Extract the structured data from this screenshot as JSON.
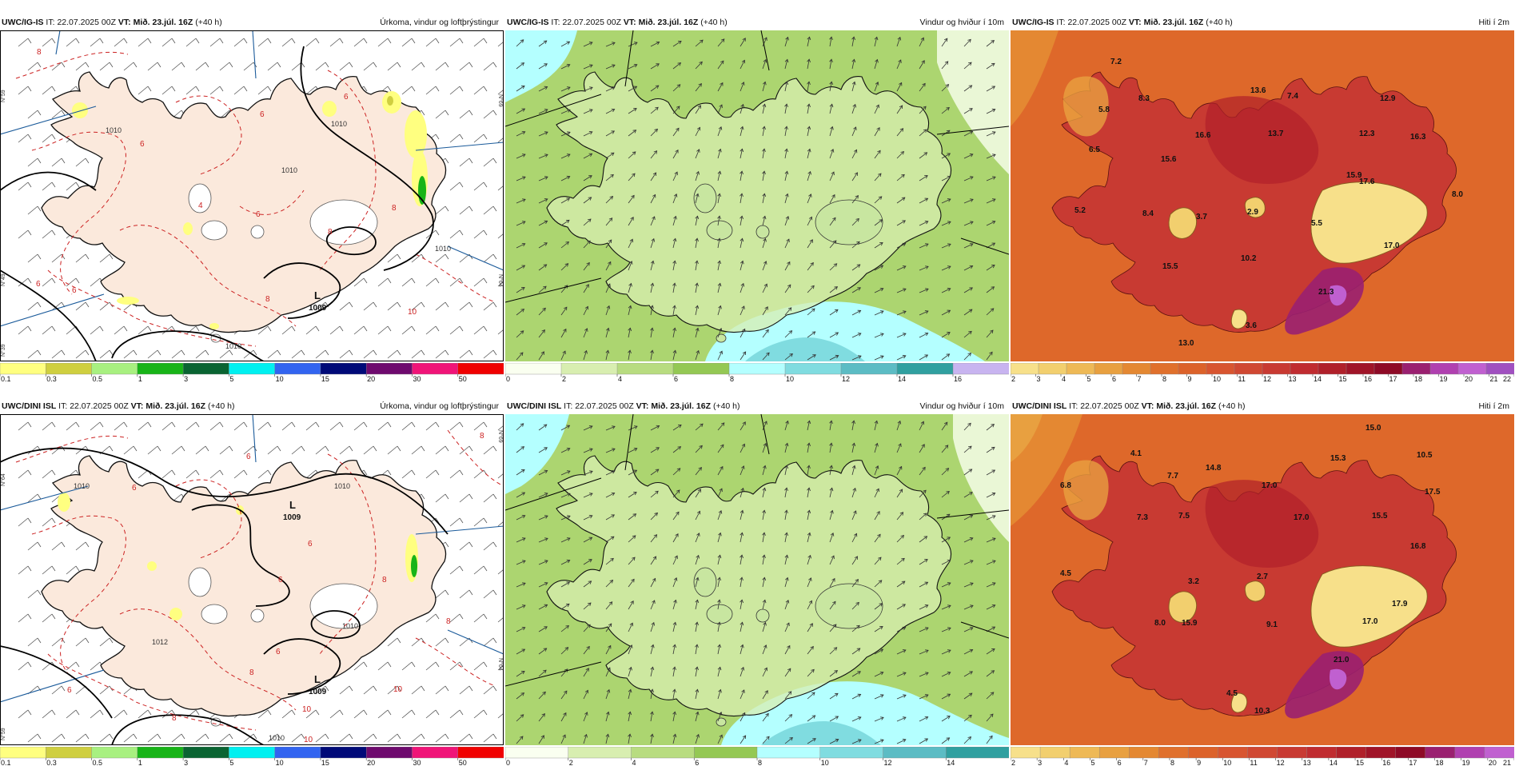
{
  "rows": [
    {
      "panels": [
        {
          "type": "precip",
          "model": "UWC/IG-IS",
          "it_label": "IT:",
          "it": "22.07.2025 00Z",
          "vt_label": "VT:",
          "vt": "Mið. 23.júl. 16Z",
          "lead": "(+40 h)",
          "title": "Úrkoma, vindur og loftþrýstingur",
          "pressure_labels": [
            {
              "text": "1010"
            },
            {
              "text": "1010"
            },
            {
              "text": "1010"
            },
            {
              "text": "1010"
            },
            {
              "text": "1010"
            }
          ],
          "low": {
            "letter": "L",
            "value": "1009"
          },
          "temp_labels": [
            "8",
            "6",
            "6",
            "4",
            "6",
            "6",
            "8",
            "8",
            "6",
            "8",
            "10",
            "6"
          ],
          "grid_labels": [
            "N°59",
            "N°49",
            "N°39",
            "N°69",
            "N°64"
          ]
        },
        {
          "type": "wind",
          "model": "UWC/IG-IS",
          "it_label": "IT:",
          "it": "22.07.2025 00Z",
          "vt_label": "VT:",
          "vt": "Mið. 23.júl. 16Z",
          "lead": "(+40 h)",
          "title": "Vindur og hviður í 10m"
        },
        {
          "type": "temp",
          "model": "UWC/IG-IS",
          "it_label": "IT:",
          "it": "22.07.2025 00Z",
          "vt_label": "VT:",
          "vt": "Mið. 23.júl. 16Z",
          "lead": "(+40 h)",
          "title": "Hiti í 2m",
          "values": [
            "7.2",
            "5.8",
            "8.3",
            "13.6",
            "7.4",
            "12.9",
            "6.5",
            "16.6",
            "13.7",
            "12.3",
            "16.3",
            "15.6",
            "15.9",
            "17.6",
            "8.0",
            "5.2",
            "8.4",
            "3.7",
            "2.9",
            "5.5",
            "17.0",
            "10.2",
            "15.5",
            "21.3",
            "3.6",
            "13.0"
          ]
        }
      ]
    },
    {
      "panels": [
        {
          "type": "precip",
          "model": "UWC/DINI ISL",
          "it_label": "IT:",
          "it": "22.07.2025 00Z",
          "vt_label": "VT:",
          "vt": "Mið. 23.júl. 16Z",
          "lead": "(+40 h)",
          "title": "Úrkoma, vindur og loftþrýstingur",
          "pressure_labels": [
            {
              "text": "1010"
            },
            {
              "text": "1010"
            },
            {
              "text": "1012"
            },
            {
              "text": "1010"
            },
            {
              "text": "1010"
            }
          ],
          "low": {
            "letter": "L",
            "value": "1009"
          },
          "low2": {
            "letter": "L",
            "value": "1009"
          },
          "temp_labels": [
            "8",
            "6",
            "6",
            "6",
            "6",
            "6",
            "8",
            "8",
            "8",
            "6",
            "10",
            "10",
            "10",
            "8"
          ],
          "grid_labels": [
            "N°59",
            "N°69",
            "N°64",
            "N°64"
          ]
        },
        {
          "type": "wind",
          "model": "UWC/DINI ISL",
          "it_label": "IT:",
          "it": "22.07.2025 00Z",
          "vt_label": "VT:",
          "vt": "Mið. 23.júl. 16Z",
          "lead": "(+40 h)",
          "title": "Vindur og hviður í 10m"
        },
        {
          "type": "temp",
          "model": "UWC/DINI ISL",
          "it_label": "IT:",
          "it": "22.07.2025 00Z",
          "vt_label": "VT:",
          "vt": "Mið. 23.júl. 16Z",
          "lead": "(+40 h)",
          "title": "Hiti í 2m",
          "values": [
            "15.0",
            "10.5",
            "4.1",
            "15.3",
            "7.7",
            "14.8",
            "6.8",
            "17.0",
            "17.5",
            "7.3",
            "7.5",
            "17.0",
            "15.5",
            "16.8",
            "4.5",
            "3.2",
            "2.7",
            "8.0",
            "15.9",
            "9.1",
            "17.9",
            "17.0",
            "21.0",
            "4.5",
            "10.3"
          ]
        }
      ]
    }
  ],
  "legends": {
    "precip": {
      "colors": [
        "#ffff80",
        "#cfcf40",
        "#a8f080",
        "#18b418",
        "#0a6432",
        "#00f0f0",
        "#3264f0",
        "#000a78",
        "#6e0a6e",
        "#f01478",
        "#f00000"
      ],
      "ticks": [
        "0.1",
        "0.3",
        "0.5",
        "1",
        "3",
        "5",
        "10",
        "15",
        "20",
        "30",
        "50"
      ]
    },
    "wind_top": {
      "colors": [
        "#fafff0",
        "#d8eeb0",
        "#b8dc80",
        "#94c854",
        "#b4ffff",
        "#80dce0",
        "#5cbcc4",
        "#30a0a0",
        "#c8b4f0"
      ],
      "ticks": [
        "0",
        "2",
        "4",
        "6",
        "8",
        "10",
        "12",
        "14",
        "16"
      ]
    },
    "wind_bottom": {
      "colors": [
        "#fafff0",
        "#d8eeb0",
        "#b8dc80",
        "#94c854",
        "#b4ffff",
        "#80dce0",
        "#5cbcc4",
        "#30a0a0"
      ],
      "ticks": [
        "0",
        "2",
        "4",
        "6",
        "8",
        "10",
        "12",
        "14"
      ]
    },
    "temp_top": {
      "colors": [
        "#f7e08a",
        "#f2cf6e",
        "#eeb956",
        "#e8a040",
        "#e48832",
        "#e0702c",
        "#dc622a",
        "#d85530",
        "#d04832",
        "#c83a32",
        "#c02c30",
        "#b0202a",
        "#a01428",
        "#8e0a26",
        "#9a2070",
        "#b040b0",
        "#c060d0",
        "#a050c0"
      ],
      "ticks": [
        "2",
        "3",
        "4",
        "5",
        "6",
        "7",
        "8",
        "9",
        "10",
        "11",
        "12",
        "13",
        "14",
        "15",
        "16",
        "17",
        "18",
        "19",
        "20",
        "21",
        "22"
      ]
    },
    "temp_bottom": {
      "colors": [
        "#f7e08a",
        "#f2cf6e",
        "#eeb956",
        "#e8a040",
        "#e48832",
        "#e0702c",
        "#dc622a",
        "#d85530",
        "#d04832",
        "#c83a32",
        "#c02c30",
        "#b0202a",
        "#a01428",
        "#8e0a26",
        "#9a2070",
        "#b040b0",
        "#c060d0"
      ],
      "ticks": [
        "2",
        "3",
        "4",
        "5",
        "6",
        "7",
        "8",
        "9",
        "10",
        "11",
        "12",
        "13",
        "14",
        "15",
        "16",
        "17",
        "18",
        "19",
        "20",
        "21"
      ]
    }
  }
}
